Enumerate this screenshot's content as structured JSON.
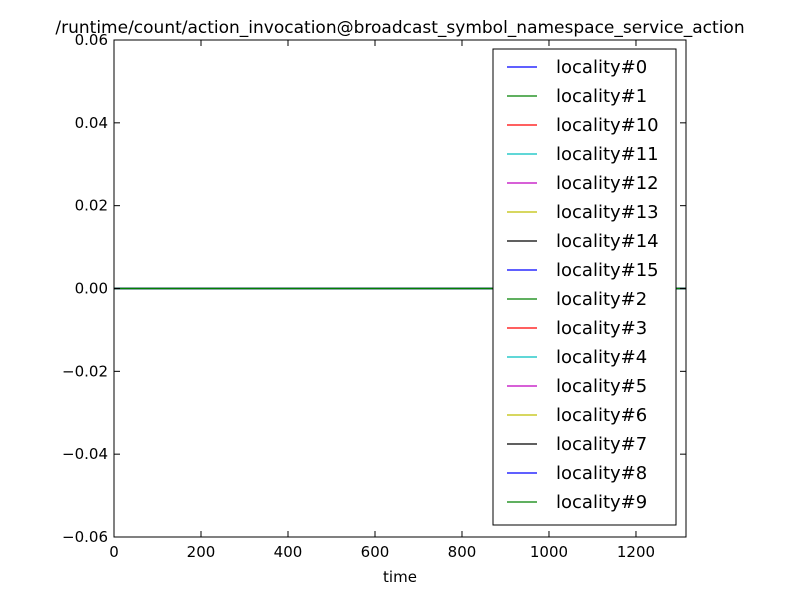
{
  "chart_data": {
    "type": "line",
    "title": "/runtime/count/action_invocation@broadcast_symbol_namespace_service_action",
    "xlabel": "time",
    "ylabel": "",
    "xlim": [
      0,
      1315
    ],
    "ylim": [
      -0.06,
      0.06
    ],
    "x_ticks": [
      0,
      200,
      400,
      600,
      800,
      1000,
      1200
    ],
    "y_ticks": [
      -0.06,
      -0.04,
      -0.02,
      0.0,
      0.02,
      0.04,
      0.06
    ],
    "y_tick_labels": [
      "−0.06",
      "−0.04",
      "−0.02",
      "0.00",
      "0.02",
      "0.04",
      "0.06"
    ],
    "grid": false,
    "legend_position": "top-right",
    "series": [
      {
        "name": "locality#0",
        "color": "#0000ff",
        "x": [
          0,
          1315
        ],
        "y": [
          0,
          0
        ]
      },
      {
        "name": "locality#1",
        "color": "#008000",
        "x": [
          0,
          1315
        ],
        "y": [
          0,
          0
        ]
      },
      {
        "name": "locality#10",
        "color": "#ff0000",
        "x": [
          0,
          1315
        ],
        "y": [
          0,
          0
        ]
      },
      {
        "name": "locality#11",
        "color": "#00bfbf",
        "x": [
          0,
          1315
        ],
        "y": [
          0,
          0
        ]
      },
      {
        "name": "locality#12",
        "color": "#bf00bf",
        "x": [
          0,
          1315
        ],
        "y": [
          0,
          0
        ]
      },
      {
        "name": "locality#13",
        "color": "#bfbf00",
        "x": [
          0,
          1315
        ],
        "y": [
          0,
          0
        ]
      },
      {
        "name": "locality#14",
        "color": "#000000",
        "x": [
          0,
          1315
        ],
        "y": [
          0,
          0
        ]
      },
      {
        "name": "locality#15",
        "color": "#0000ff",
        "x": [
          0,
          1315
        ],
        "y": [
          0,
          0
        ]
      },
      {
        "name": "locality#2",
        "color": "#008000",
        "x": [
          0,
          1315
        ],
        "y": [
          0,
          0
        ]
      },
      {
        "name": "locality#3",
        "color": "#ff0000",
        "x": [
          0,
          1315
        ],
        "y": [
          0,
          0
        ]
      },
      {
        "name": "locality#4",
        "color": "#00bfbf",
        "x": [
          0,
          1315
        ],
        "y": [
          0,
          0
        ]
      },
      {
        "name": "locality#5",
        "color": "#bf00bf",
        "x": [
          0,
          1315
        ],
        "y": [
          0,
          0
        ]
      },
      {
        "name": "locality#6",
        "color": "#bfbf00",
        "x": [
          0,
          1315
        ],
        "y": [
          0,
          0
        ]
      },
      {
        "name": "locality#7",
        "color": "#000000",
        "x": [
          0,
          1315
        ],
        "y": [
          0,
          0
        ]
      },
      {
        "name": "locality#8",
        "color": "#0000ff",
        "x": [
          0,
          1315
        ],
        "y": [
          0,
          0
        ]
      },
      {
        "name": "locality#9",
        "color": "#008000",
        "x": [
          0,
          1315
        ],
        "y": [
          0,
          0
        ]
      }
    ]
  }
}
